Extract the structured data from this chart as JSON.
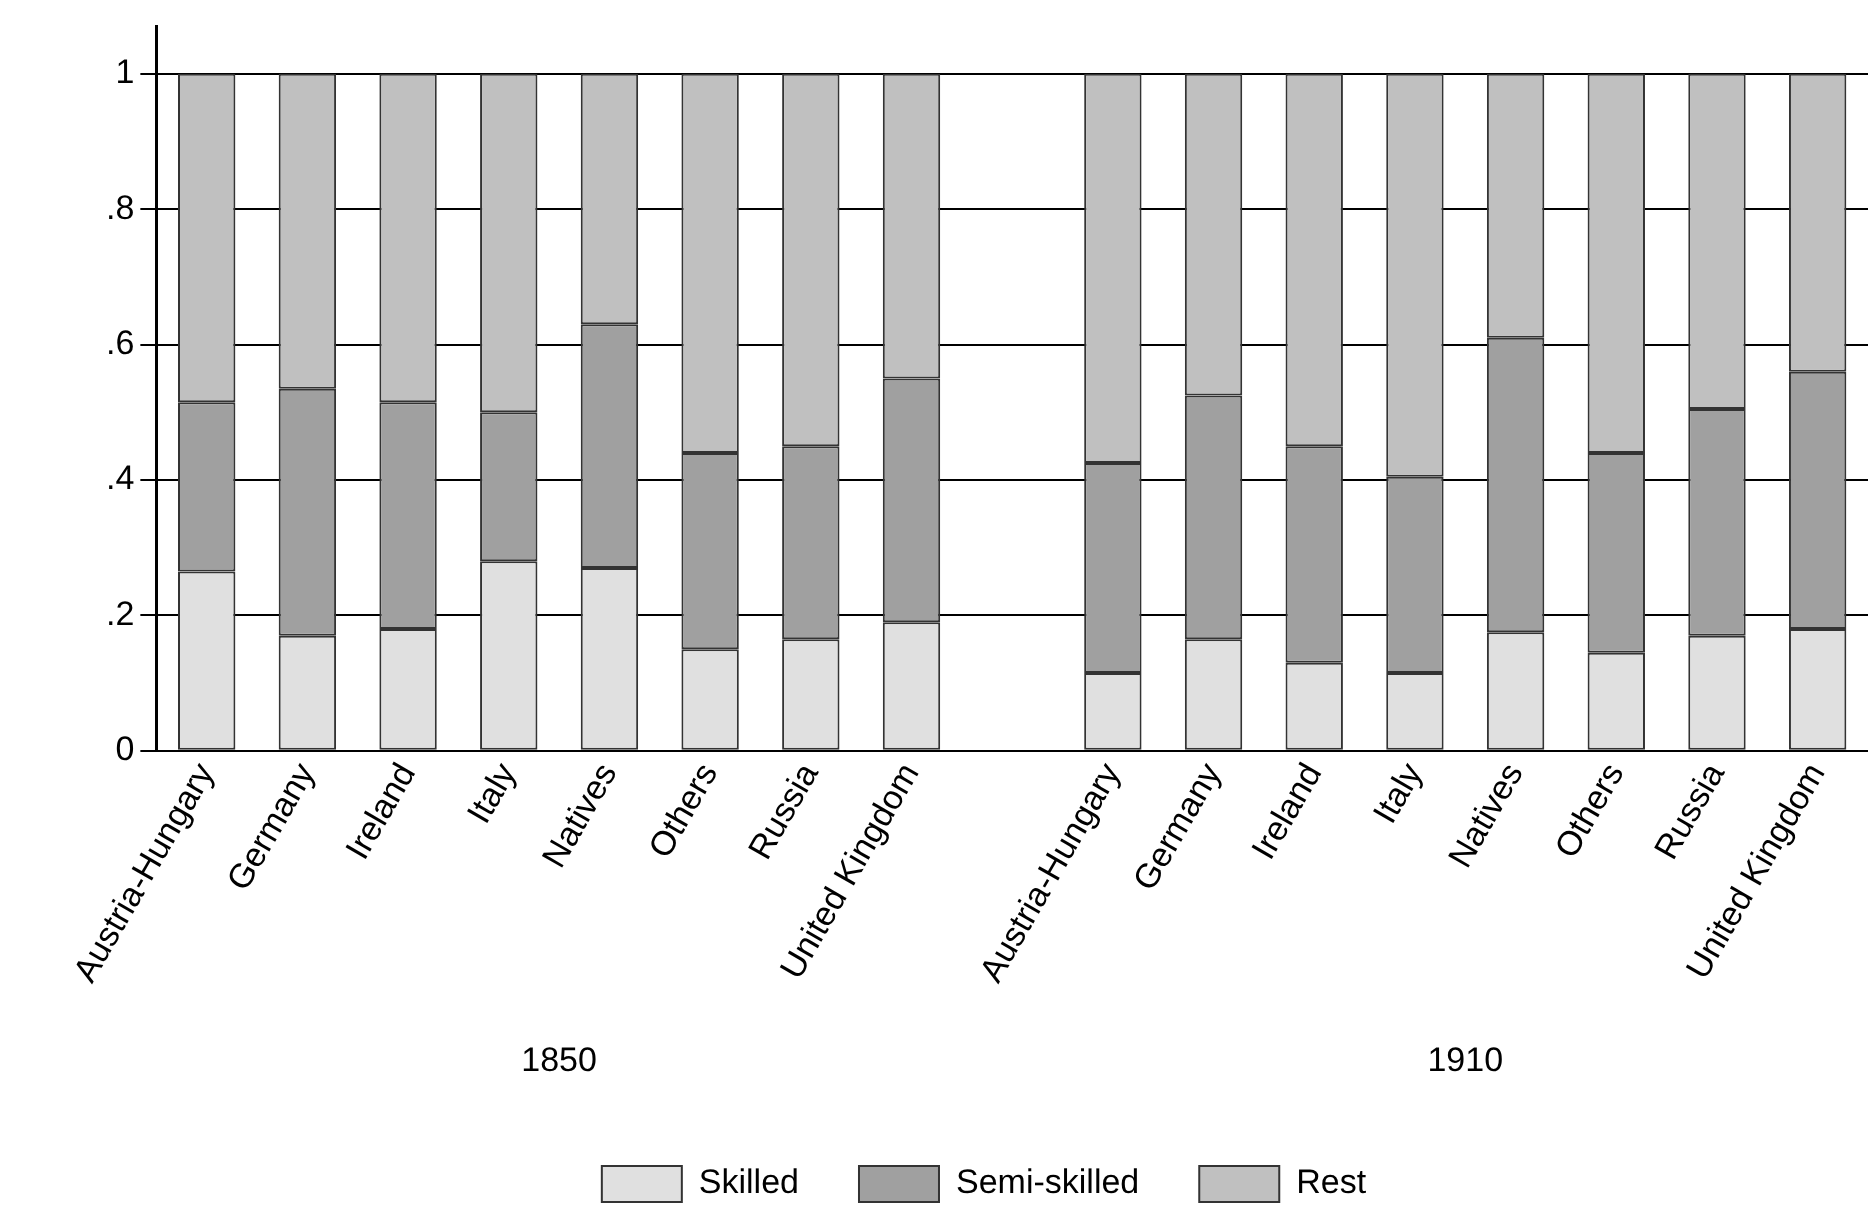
{
  "chart_data": {
    "type": "bar",
    "stacked": true,
    "categories": [
      "Austria-Hungary",
      "Germany",
      "Ireland",
      "Italy",
      "Natives",
      "Others",
      "Russia",
      "United Kingdom",
      null,
      "Austria-Hungary",
      "Germany",
      "Ireland",
      "Italy",
      "Natives",
      "Others",
      "Russia",
      "United Kingdom"
    ],
    "series": [
      {
        "name": "Skilled",
        "color": "#e0e0e0",
        "values": [
          0.265,
          0.17,
          0.18,
          0.28,
          0.27,
          0.15,
          0.165,
          0.19,
          null,
          0.115,
          0.165,
          0.13,
          0.115,
          0.175,
          0.145,
          0.17,
          0.18
        ]
      },
      {
        "name": "Semi-skilled",
        "color": "#a0a0a0",
        "values": [
          0.25,
          0.365,
          0.335,
          0.22,
          0.36,
          0.29,
          0.285,
          0.36,
          null,
          0.31,
          0.36,
          0.32,
          0.29,
          0.435,
          0.295,
          0.335,
          0.38
        ]
      },
      {
        "name": "Rest",
        "color": "#c0c0c0",
        "values": [
          0.485,
          0.465,
          0.485,
          0.5,
          0.37,
          0.56,
          0.55,
          0.45,
          null,
          0.575,
          0.475,
          0.55,
          0.595,
          0.39,
          0.56,
          0.495,
          0.44
        ]
      }
    ],
    "ylim": [
      0,
      1.07
    ],
    "yticks": [
      0,
      {
        "value": 0.2,
        "label": ".2"
      },
      {
        "value": 0.4,
        "label": ".4"
      },
      {
        "value": 0.6,
        "label": ".6"
      },
      {
        "value": 0.8,
        "label": ".8"
      },
      1
    ],
    "grid": "y",
    "legend": "bottom",
    "annotations": [
      "1850",
      "1910"
    ]
  }
}
